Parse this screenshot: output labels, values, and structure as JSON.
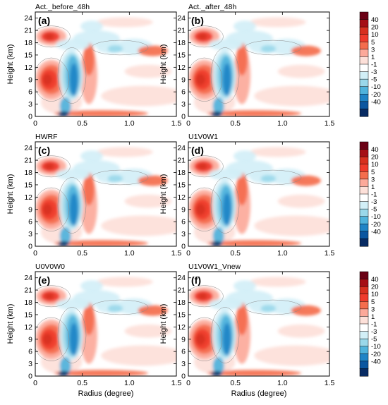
{
  "chart_data": {
    "type": "heatmap",
    "xlabel": "Radius (degree)",
    "ylabel": "Height (km)",
    "xlim": [
      0,
      1.5
    ],
    "ylim": [
      0,
      25.5
    ],
    "x_ticks": [
      "0",
      "0.5",
      "1.0",
      "1.5"
    ],
    "y_ticks": [
      "0",
      "3",
      "6",
      "9",
      "12",
      "15",
      "18",
      "21",
      "24"
    ],
    "colorbar": {
      "levels": [
        "40",
        "20",
        "10",
        "5",
        "3",
        "1",
        "-1",
        "-3",
        "-5",
        "-10",
        "-20",
        "-40"
      ],
      "colors": [
        "#6a0014",
        "#a50f15",
        "#d7301f",
        "#ef3b2c",
        "#f46d4d",
        "#fca99a",
        "#fde0d9",
        "#ffffff",
        "#d2eff7",
        "#9ad8ea",
        "#4fb3dc",
        "#1f84c6",
        "#0b56a0",
        "#082b63"
      ]
    },
    "panels": [
      {
        "label": "(a)",
        "title": "Act._before_48h"
      },
      {
        "label": "(b)",
        "title": "Act._after_48h"
      },
      {
        "label": "(c)",
        "title": "HWRF"
      },
      {
        "label": "(d)",
        "title": "U1V0W1"
      },
      {
        "label": "(e)",
        "title": "U0V0W0"
      },
      {
        "label": "(f)",
        "title": "U1V0W1_Vnew"
      }
    ]
  }
}
